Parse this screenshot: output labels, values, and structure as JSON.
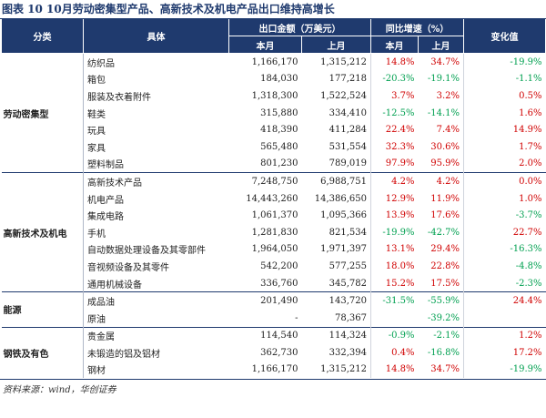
{
  "title": "图表 10   10月劳动密集型产品、高新技术及机电产品出口维持高增长",
  "header": {
    "category": "分类",
    "item": "具体",
    "export": "出口金额（万美元）",
    "export_sub": [
      "本月",
      "上月"
    ],
    "yoy": "同比增速（%）",
    "yoy_sub": [
      "本月",
      "上月"
    ],
    "change": "变化值"
  },
  "groups": [
    {
      "category": "劳动密集型",
      "rows": [
        [
          "纺织品",
          "1,166,170",
          "1,315,212",
          "14.8%",
          "34.7%",
          "-19.9%"
        ],
        [
          "箱包",
          "184,030",
          "177,218",
          "-20.3%",
          "-19.1%",
          "-1.1%"
        ],
        [
          "服装及衣着附件",
          "1,318,300",
          "1,522,524",
          "3.7%",
          "3.2%",
          "0.5%"
        ],
        [
          "鞋类",
          "315,880",
          "334,410",
          "-12.5%",
          "-14.1%",
          "1.6%"
        ],
        [
          "玩具",
          "418,390",
          "411,284",
          "22.4%",
          "7.4%",
          "14.9%"
        ],
        [
          "家具",
          "565,480",
          "531,554",
          "32.3%",
          "30.6%",
          "1.7%"
        ],
        [
          "塑料制品",
          "801,230",
          "789,019",
          "97.9%",
          "95.9%",
          "2.0%"
        ]
      ]
    },
    {
      "category": "高新技术及机电",
      "rows": [
        [
          "高新技术产品",
          "7,248,750",
          "6,988,751",
          "4.2%",
          "4.2%",
          "0.0%"
        ],
        [
          "机电产品",
          "14,443,260",
          "14,386,650",
          "12.9%",
          "11.9%",
          "1.0%"
        ],
        [
          "集成电路",
          "1,061,370",
          "1,095,366",
          "13.9%",
          "17.6%",
          "-3.7%"
        ],
        [
          "手机",
          "1,281,830",
          "821,534",
          "-19.9%",
          "-42.7%",
          "22.7%"
        ],
        [
          "自动数据处理设备及其零部件",
          "1,964,050",
          "1,971,397",
          "13.1%",
          "29.4%",
          "-16.3%"
        ],
        [
          "音视频设备及其零件",
          "542,200",
          "577,255",
          "18.0%",
          "22.8%",
          "-4.8%"
        ],
        [
          "通用机械设备",
          "336,760",
          "345,782",
          "15.2%",
          "17.5%",
          "-2.3%"
        ]
      ]
    },
    {
      "category": "能源",
      "rows": [
        [
          "成品油",
          "201,490",
          "143,720",
          "-31.5%",
          "-55.9%",
          "24.4%"
        ],
        [
          "原油",
          "-",
          "78,367",
          null,
          "-39.2%",
          null
        ]
      ]
    },
    {
      "category": "钢铁及有色",
      "rows": [
        [
          "贵金属",
          "114,540",
          "114,324",
          "-0.9%",
          "-2.1%",
          "1.2%"
        ],
        [
          "未锻造的铝及铝材",
          "362,730",
          "332,394",
          "0.4%",
          "-16.8%",
          "17.2%"
        ],
        [
          "钢材",
          "1,166,170",
          "1,315,212",
          "14.8%",
          "34.7%",
          "-19.9%"
        ]
      ]
    }
  ],
  "source": "资料来源：wind，华创证券"
}
